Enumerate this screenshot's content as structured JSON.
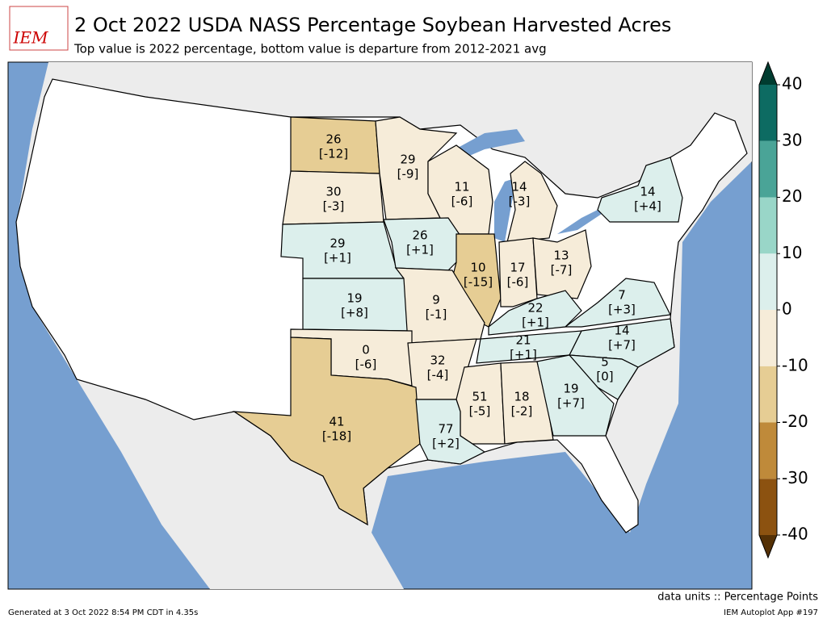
{
  "header": {
    "title": "2 Oct 2022 USDA NASS Percentage Soybean Harvested Acres",
    "subtitle": "Top value is 2022 percentage, bottom value is departure from 2012-2021 avg",
    "logo": "IEM"
  },
  "states": [
    {
      "value": 26,
      "departure": -12,
      "departure_label": "[-12]"
    },
    {
      "value": 30,
      "departure": -3,
      "departure_label": "[-3]"
    },
    {
      "value": 29,
      "departure": -9,
      "departure_label": "[-9]"
    },
    {
      "value": 11,
      "departure": -6,
      "departure_label": "[-6]"
    },
    {
      "value": 14,
      "departure": -3,
      "departure_label": "[-3]"
    },
    {
      "value": 14,
      "departure": 4,
      "departure_label": "[+4]"
    },
    {
      "value": 29,
      "departure": 1,
      "departure_label": "[+1]"
    },
    {
      "value": 26,
      "departure": 1,
      "departure_label": "[+1]"
    },
    {
      "value": 10,
      "departure": -15,
      "departure_label": "[-15]"
    },
    {
      "value": 17,
      "departure": -6,
      "departure_label": "[-6]"
    },
    {
      "value": 13,
      "departure": -7,
      "departure_label": "[-7]"
    },
    {
      "value": 19,
      "departure": 8,
      "departure_label": "[+8]"
    },
    {
      "value": 9,
      "departure": -1,
      "departure_label": "[-1]"
    },
    {
      "value": 22,
      "departure": 1,
      "departure_label": "[+1]"
    },
    {
      "value": 7,
      "departure": 3,
      "departure_label": "[+3]"
    },
    {
      "value": 14,
      "departure": 7,
      "departure_label": "[+7]"
    },
    {
      "value": 21,
      "departure": 1,
      "departure_label": "[+1]"
    },
    {
      "value": 0,
      "departure": -6,
      "departure_label": "[-6]"
    },
    {
      "value": 32,
      "departure": -4,
      "departure_label": "[-4]"
    },
    {
      "value": 5,
      "departure": 0,
      "departure_label": "[0]"
    },
    {
      "value": 51,
      "departure": -5,
      "departure_label": "[-5]"
    },
    {
      "value": 18,
      "departure": -2,
      "departure_label": "[-2]"
    },
    {
      "value": 19,
      "departure": 7,
      "departure_label": "[+7]"
    },
    {
      "value": 41,
      "departure": -18,
      "departure_label": "[-18]"
    },
    {
      "value": 77,
      "departure": 2,
      "departure_label": "[+2]"
    }
  ],
  "colorbar": {
    "lim": [
      -40,
      40
    ],
    "ticks": [
      -40,
      -30,
      -20,
      -10,
      0,
      10,
      20,
      30,
      40
    ],
    "colors": [
      "#8c5210",
      "#bf8a3a",
      "#e6cd94",
      "#f6ecd9",
      "#dcefec",
      "#99d6c8",
      "#4aa497",
      "#0d6b62"
    ],
    "under": "#543005",
    "over": "#003c30"
  },
  "footer": {
    "units": "data units :: Percentage Points",
    "generated": "Generated at 3 Oct 2022 8:54 PM CDT in 4.35s",
    "app": "IEM Autoplot App #197"
  }
}
